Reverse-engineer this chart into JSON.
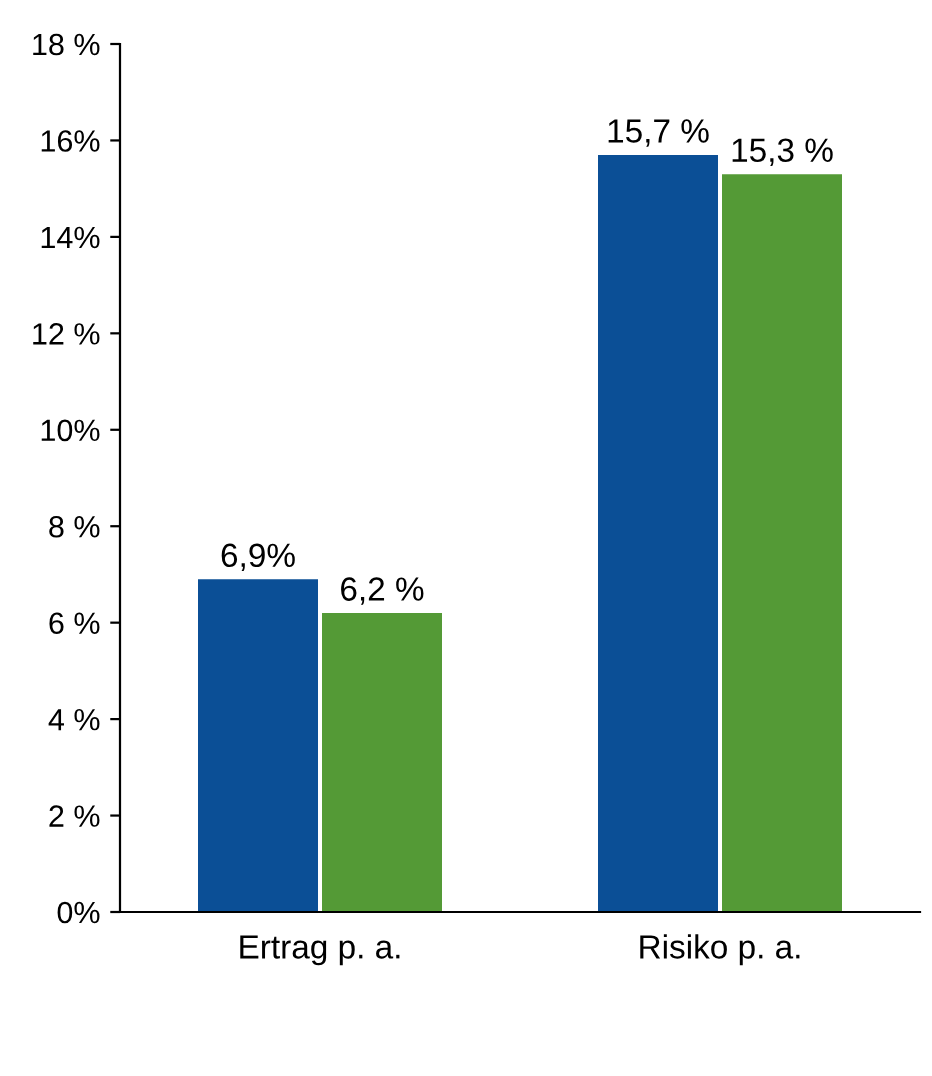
{
  "chart_data": {
    "type": "bar",
    "categories": [
      "Ertrag p. a.",
      "Risiko p. a."
    ],
    "series": [
      {
        "color": "#0b4f96",
        "values": [
          6.9,
          15.7
        ],
        "value_labels": [
          "6,9%",
          "15,7 %"
        ]
      },
      {
        "color": "#549a36",
        "values": [
          6.2,
          15.3
        ],
        "value_labels": [
          "6,2 %",
          "15,3 %"
        ]
      }
    ],
    "ylim": [
      0,
      18
    ],
    "yticks": [
      {
        "value": 0,
        "label": "0%"
      },
      {
        "value": 2,
        "label": "2 %"
      },
      {
        "value": 4,
        "label": "4 %"
      },
      {
        "value": 6,
        "label": "6 %"
      },
      {
        "value": 8,
        "label": "8 %"
      },
      {
        "value": 10,
        "label": "10%"
      },
      {
        "value": 12,
        "label": "12 %"
      },
      {
        "value": 14,
        "label": "14%"
      },
      {
        "value": 16,
        "label": "16%"
      },
      {
        "value": 18,
        "label": "18 %"
      }
    ],
    "grid": false
  }
}
